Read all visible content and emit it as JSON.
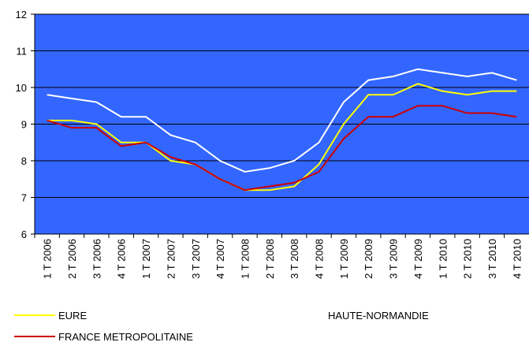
{
  "chart_data": {
    "type": "line",
    "categories": [
      "1 T 2006",
      "2 T 2006",
      "3 T 2006",
      "4 T 2006",
      "1 T 2007",
      "2 T 2007",
      "3 T 2007",
      "4 T 2007",
      "1 T 2008",
      "2 T 2008",
      "3 T 2008",
      "4 T 2008",
      "1 T 2009",
      "2 T 2009",
      "3 T 2009",
      "4 T 2009",
      "1 T 2010",
      "2 T 2010",
      "3 T 2010",
      "4 T 2010"
    ],
    "series": [
      {
        "name": "EURE",
        "color": "#ffff00",
        "values": [
          9.1,
          9.1,
          9.0,
          8.5,
          8.5,
          8.0,
          7.9,
          7.5,
          7.2,
          7.2,
          7.3,
          7.9,
          9.0,
          9.8,
          9.8,
          10.1,
          9.9,
          9.8,
          9.9,
          9.9
        ]
      },
      {
        "name": "HAUTE-NORMANDIE",
        "color": "#ffffff",
        "values": [
          9.8,
          9.7,
          9.6,
          9.2,
          9.2,
          8.7,
          8.5,
          8.0,
          7.7,
          7.8,
          8.0,
          8.5,
          9.6,
          10.2,
          10.3,
          10.5,
          10.4,
          10.3,
          10.4,
          10.2
        ]
      },
      {
        "name": "FRANCE METROPOLITAINE",
        "color": "#cc0000",
        "values": [
          9.1,
          8.9,
          8.9,
          8.4,
          8.5,
          8.1,
          7.9,
          7.5,
          7.2,
          7.3,
          7.4,
          7.7,
          8.6,
          9.2,
          9.2,
          9.5,
          9.5,
          9.3,
          9.3,
          9.2
        ]
      }
    ],
    "ylim": [
      6,
      12
    ],
    "yticks": [
      6,
      7,
      8,
      9,
      10,
      11,
      12
    ],
    "grid": true,
    "plot_background": "#3366ff"
  }
}
